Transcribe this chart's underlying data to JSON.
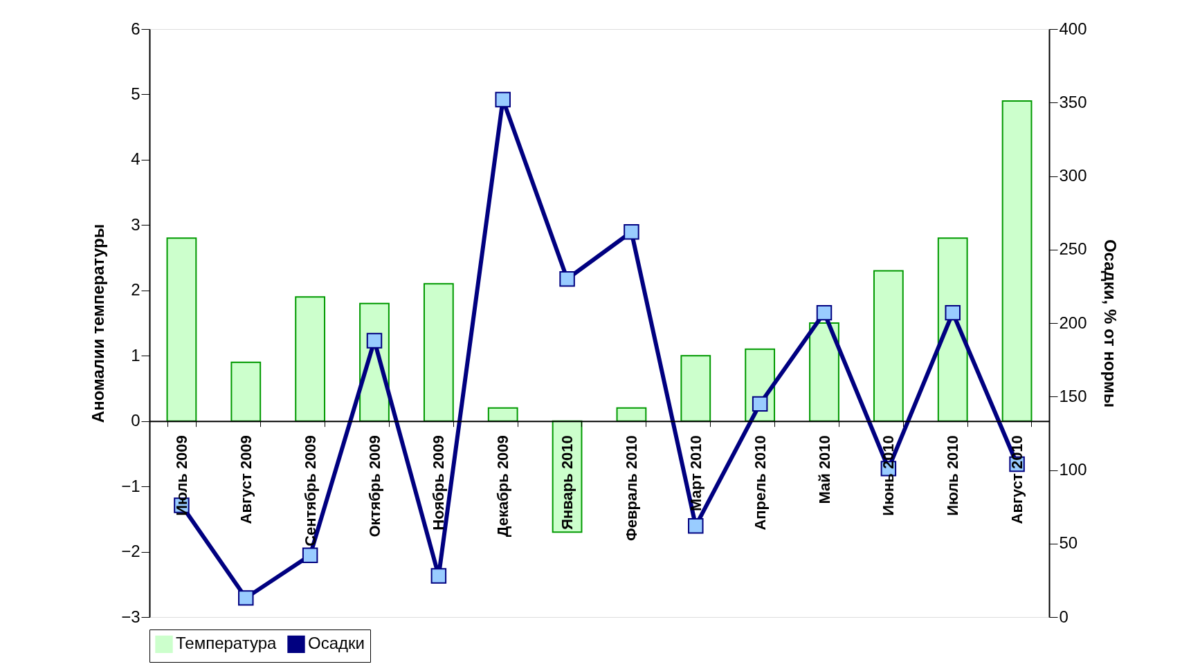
{
  "chart_data": {
    "type": "bar",
    "xlabel": null,
    "ylabel": "Аномалии температуры",
    "y2label": "Осадки, % от нормы",
    "categories": [
      "Июль 2009",
      "Август 2009",
      "Сентябрь 2009",
      "Октябрь 2009",
      "Ноябрь 2009",
      "Декабрь 2009",
      "Январь 2010",
      "Февраль 2010",
      "Март 2010",
      "Апрель 2010",
      "Май 2010",
      "Июнь 2010",
      "Июль 2010",
      "Август 2010"
    ],
    "series": [
      {
        "name": "Температура",
        "color": "#ccffcc",
        "values": [
          2.8,
          0.9,
          1.9,
          1.8,
          2.1,
          0.2,
          -1.7,
          0.2,
          1.0,
          1.1,
          1.5,
          2.3,
          2.8,
          4.9
        ]
      },
      {
        "name": "Осадки",
        "type": "line",
        "axis": "y2",
        "color": "#000080",
        "marker": "square",
        "line_style": "solid",
        "values": [
          76,
          13,
          42,
          188,
          28,
          352,
          230,
          262,
          62,
          145,
          207,
          101,
          207,
          104
        ]
      }
    ],
    "ylim": [
      -3,
      6
    ],
    "yticks": [
      -3,
      -2,
      -1,
      0,
      1,
      2,
      3,
      4,
      5,
      6
    ],
    "y2lim": [
      0,
      400
    ],
    "y2ticks": [
      0,
      50,
      100,
      150,
      200,
      250,
      300,
      350,
      400
    ],
    "grid": false,
    "legend": "bottom"
  }
}
